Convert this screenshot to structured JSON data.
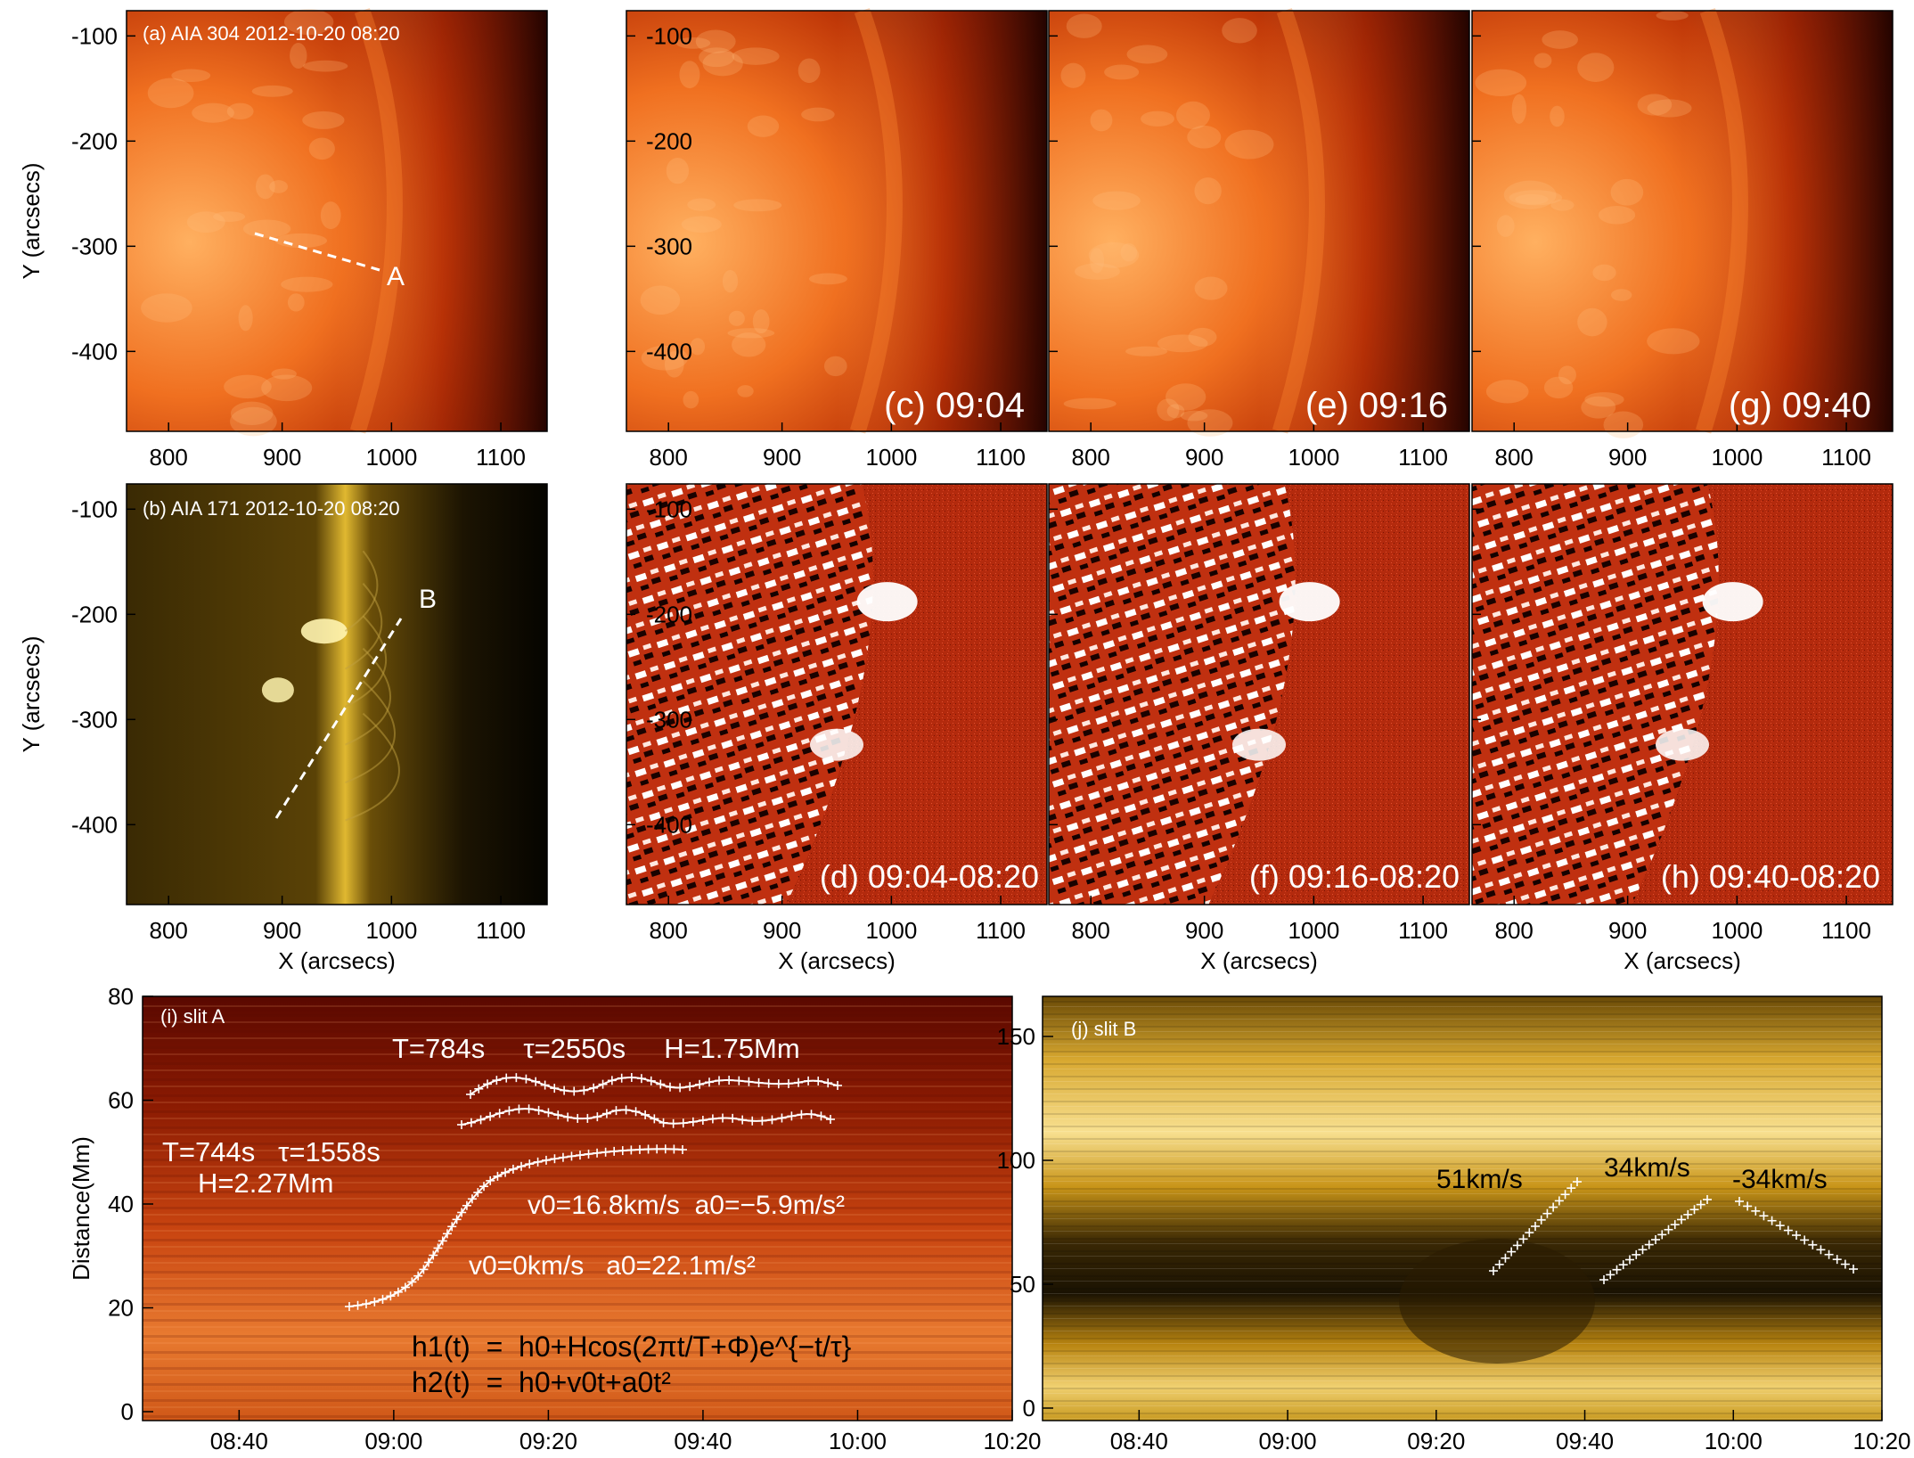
{
  "colors": {
    "aia304_dark": "#2a0400",
    "aia304_mid": "#b83008",
    "aia304_bright": "#ff9a40",
    "aia171_dark": "#0a0800",
    "aia171_mid": "#7a5a08",
    "aia171_bright": "#fff0a0",
    "diff_background": "#b32a0d",
    "overlay_text": "#ffffff",
    "axis_text": "#000000"
  },
  "panels": {
    "a": {
      "label": "(a) AIA 304 2012-10-20 08:20",
      "slit": "A"
    },
    "b": {
      "label": "(b) AIA 171 2012-10-20 08:20",
      "slit": "B"
    },
    "c": {
      "label": "(c) 09:04"
    },
    "d": {
      "label": "(d) 09:04-08:20"
    },
    "e": {
      "label": "(e) 09:16"
    },
    "f": {
      "label": "(f) 09:16-08:20"
    },
    "g": {
      "label": "(g) 09:40"
    },
    "h": {
      "label": "(h) 09:40-08:20"
    },
    "i": {
      "label": "(i) slit A",
      "fit1_params": "T=784s     τ=2550s     H=1.75Mm",
      "fit2_T_tau": "T=744s   τ=1558s",
      "fit2_H": "H=2.27Mm",
      "kin1": "v0=16.8km/s  a0=−5.9m/s²",
      "kin2": "v0=0km/s   a0=22.1m/s²",
      "eq1": "h1(t)  =  h0+Hcos(2πt/T+Φ)e^{−t/τ}",
      "eq2": "h2(t)  =  h0+v0t+a0t²"
    },
    "j": {
      "label": "(j) slit B",
      "speed1": "51km/s",
      "speed2": "34km/s",
      "speed3": "-34km/s"
    }
  },
  "axes": {
    "x_ticks_arcsec": [
      "800",
      "900",
      "1000",
      "1100"
    ],
    "y_ticks_arcsec": [
      "-100",
      "-200",
      "-300",
      "-400"
    ],
    "x_label": "X (arcsecs)",
    "y_label": "Y (arcsecs)",
    "time_ticks": [
      "08:40",
      "09:00",
      "09:20",
      "09:40",
      "10:00",
      "10:20"
    ],
    "i_y_ticks": [
      "0",
      "20",
      "40",
      "60",
      "80"
    ],
    "i_y_label": "Distance(Mm)",
    "j_y_ticks": [
      "0",
      "50",
      "100",
      "150"
    ]
  }
}
